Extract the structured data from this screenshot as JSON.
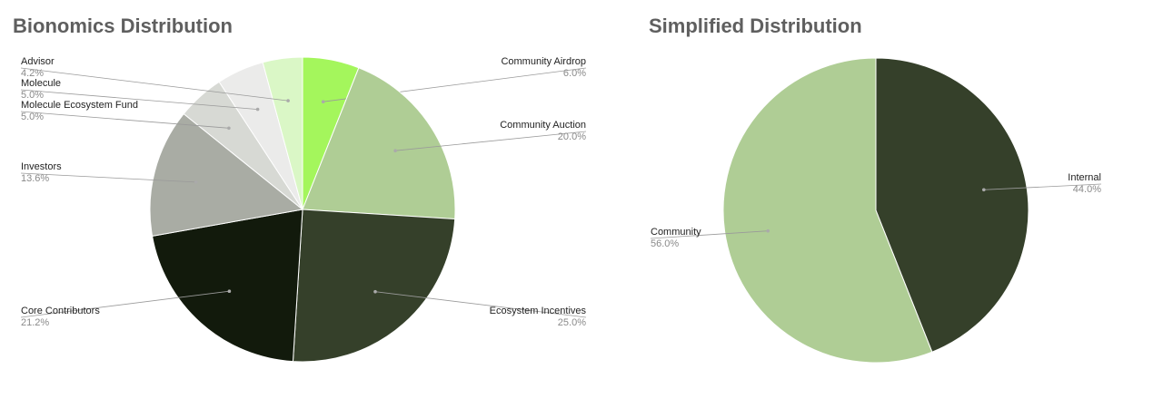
{
  "chart_data": [
    {
      "type": "pie",
      "title": "Bionomics Distribution",
      "slices": [
        {
          "label": "Community Airdrop",
          "value": 6.0,
          "display": "6.0%",
          "color": "#a4f65c"
        },
        {
          "label": "Community Auction",
          "value": 20.0,
          "display": "20.0%",
          "color": "#afcd95"
        },
        {
          "label": "Ecosystem Incentives",
          "value": 25.0,
          "display": "25.0%",
          "color": "#35402a"
        },
        {
          "label": "Core Contributors",
          "value": 21.2,
          "display": "21.2%",
          "color": "#121a0c"
        },
        {
          "label": "Investors",
          "value": 13.6,
          "display": "13.6%",
          "color": "#a9aca4"
        },
        {
          "label": "Molecule Ecosystem Fund",
          "value": 5.0,
          "display": "5.0%",
          "color": "#d7d9d4"
        },
        {
          "label": "Molecule",
          "value": 5.0,
          "display": "5.0%",
          "color": "#ebebea"
        },
        {
          "label": "Advisor",
          "value": 4.2,
          "display": "4.2%",
          "color": "#daf7c6"
        }
      ],
      "start_angle": "12 o'clock",
      "direction": "clockwise",
      "legend": "callout labels"
    },
    {
      "type": "pie",
      "title": "Simplified Distribution",
      "slices": [
        {
          "label": "Internal",
          "value": 44.0,
          "display": "44.0%",
          "color": "#35402a"
        },
        {
          "label": "Community",
          "value": 56.0,
          "display": "56.0%",
          "color": "#afcd95"
        }
      ],
      "start_angle": "12 o'clock",
      "direction": "clockwise",
      "legend": "callout labels"
    }
  ]
}
